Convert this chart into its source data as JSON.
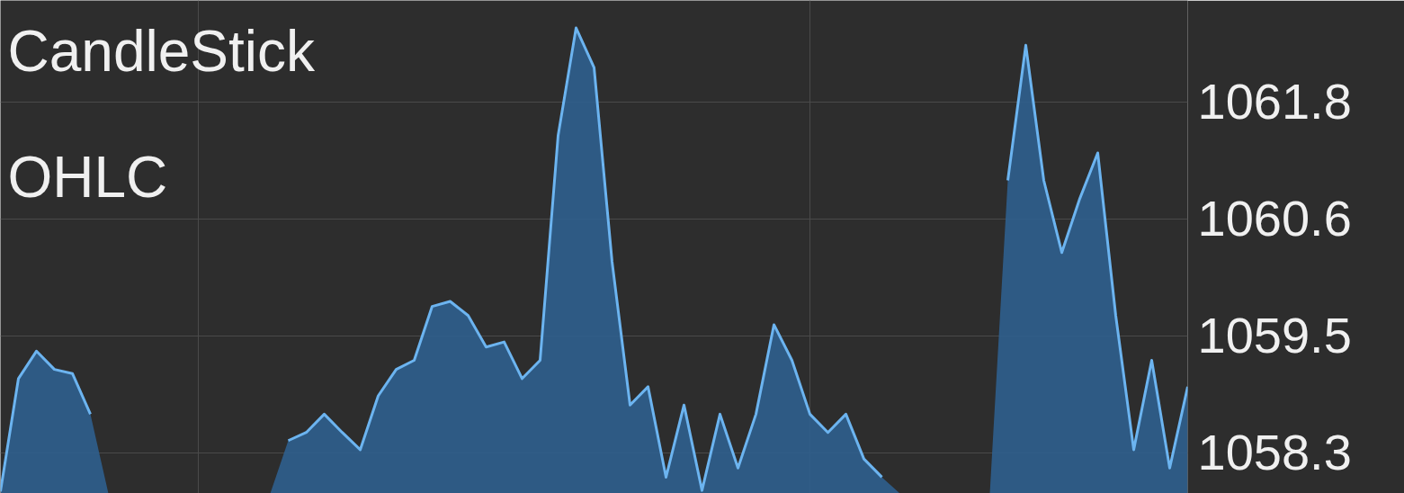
{
  "chart_data": {
    "type": "area",
    "categories": [
      null,
      null,
      null,
      null,
      null,
      null,
      null,
      null,
      null,
      null,
      null,
      null,
      null,
      null,
      null,
      null,
      null,
      null,
      null,
      null,
      null,
      null,
      null,
      null,
      null,
      null,
      null,
      null,
      null,
      null,
      null,
      null,
      null,
      null,
      null,
      null,
      null,
      null,
      null,
      null,
      null,
      null,
      null,
      null,
      null,
      null,
      null,
      null,
      null,
      null,
      null,
      null,
      null,
      null,
      null,
      null,
      null,
      null,
      null,
      null,
      null,
      null,
      null,
      null,
      null,
      null,
      null
    ],
    "series": [
      {
        "color": "#6cb4f0",
        "values": [
          1057.92,
          1059.03,
          1059.3,
          1059.12,
          1059.08,
          1058.68,
          null,
          null,
          null,
          null,
          null,
          null,
          null,
          null,
          null,
          null,
          1058.42,
          1058.5,
          1058.68,
          1058.5,
          1058.33,
          1058.86,
          1059.12,
          1059.21,
          1059.74,
          1059.79,
          1059.65,
          1059.34,
          1059.39,
          1059.03,
          1059.21,
          1061.42,
          1062.48,
          1062.09,
          1060.18,
          1058.77,
          1058.95,
          1058.06,
          1058.77,
          1057.93,
          1058.68,
          1058.15,
          1058.68,
          1059.56,
          1059.21,
          1058.68,
          1058.5,
          1058.68,
          1058.24,
          1058.06,
          null,
          null,
          null,
          null,
          null,
          null,
          1060.98,
          1062.31,
          1060.98,
          1060.27,
          1060.8,
          1061.25,
          1059.65,
          1058.33,
          1059.21,
          1058.15,
          1058.95
        ]
      }
    ],
    "ylim": [
      1057.9,
      1062.75
    ],
    "yticks": [
      {
        "value": 1058.3,
        "label": "1058.3"
      },
      {
        "value": 1059.45,
        "label": "1059.5"
      },
      {
        "value": 1060.6,
        "label": "1060.6"
      },
      {
        "value": 1061.75,
        "label": "1061.8"
      }
    ],
    "grid": true,
    "annotations": [
      "CandleStick",
      "OHLC"
    ]
  }
}
